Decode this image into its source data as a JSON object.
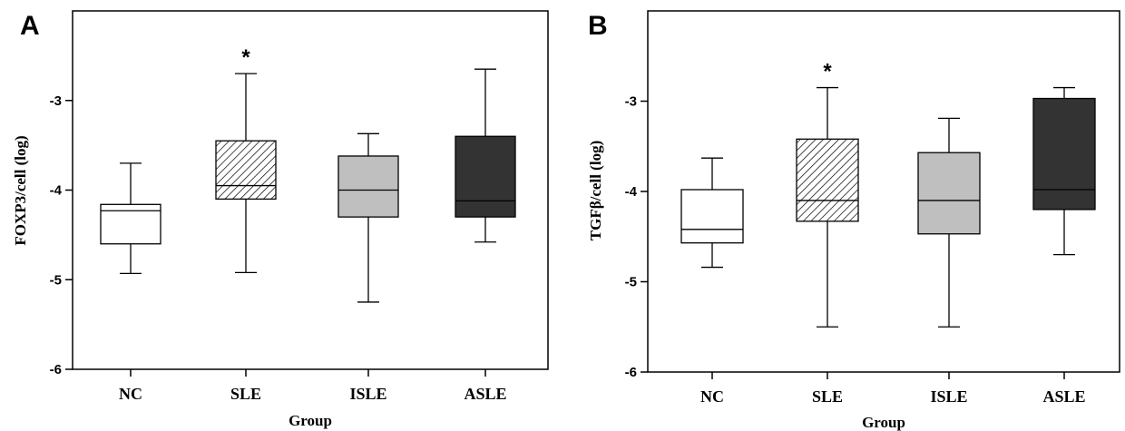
{
  "chart_data": [
    {
      "panel": "A",
      "type": "box",
      "ylabel": "FOXP3/cell (log)",
      "xlabel": "Group",
      "ylim": [
        -6,
        -2
      ],
      "yticks": [
        "-3",
        "-4",
        "-5",
        "-6"
      ],
      "categories": [
        "NC",
        "SLE",
        "ISLE",
        "ASLE"
      ],
      "boxes": [
        {
          "category": "NC",
          "min": -4.93,
          "q1": -4.6,
          "median": -4.23,
          "q3": -4.16,
          "max": -3.7,
          "fill": "white"
        },
        {
          "category": "SLE",
          "min": -4.92,
          "q1": -4.1,
          "median": -3.95,
          "q3": -3.45,
          "max": -2.7,
          "fill": "hatched"
        },
        {
          "category": "ISLE",
          "min": -5.25,
          "q1": -4.3,
          "median": -4.0,
          "q3": -3.62,
          "max": -3.37,
          "fill": "light-gray"
        },
        {
          "category": "ASLE",
          "min": -4.58,
          "q1": -4.3,
          "median": -4.12,
          "q3": -3.4,
          "max": -2.65,
          "fill": "dark-gray"
        }
      ],
      "annotations": [
        {
          "category": "SLE",
          "text": "*"
        }
      ]
    },
    {
      "panel": "B",
      "type": "box",
      "ylabel": "TGFβ/cell (log)",
      "xlabel": "Group",
      "ylim": [
        -6,
        -2
      ],
      "yticks": [
        "-3",
        "-4",
        "-5",
        "-6"
      ],
      "categories": [
        "NC",
        "SLE",
        "ISLE",
        "ASLE"
      ],
      "boxes": [
        {
          "category": "NC",
          "min": -4.84,
          "q1": -4.57,
          "median": -4.42,
          "q3": -3.98,
          "max": -3.63,
          "fill": "white"
        },
        {
          "category": "SLE",
          "min": -5.5,
          "q1": -4.33,
          "median": -4.1,
          "q3": -3.42,
          "max": -2.85,
          "fill": "hatched"
        },
        {
          "category": "ISLE",
          "min": -5.5,
          "q1": -4.47,
          "median": -4.1,
          "q3": -3.57,
          "max": -3.19,
          "fill": "light-gray"
        },
        {
          "category": "ASLE",
          "min": -4.7,
          "q1": -4.2,
          "median": -3.98,
          "q3": -2.97,
          "max": -2.85,
          "fill": "dark-gray"
        }
      ],
      "annotations": [
        {
          "category": "SLE",
          "text": "*"
        }
      ]
    }
  ],
  "colors": {
    "white": "#ffffff",
    "hatched": "#ffffff",
    "light-gray": "#bfbfbf",
    "dark-gray": "#333333",
    "stroke": "#000000"
  }
}
